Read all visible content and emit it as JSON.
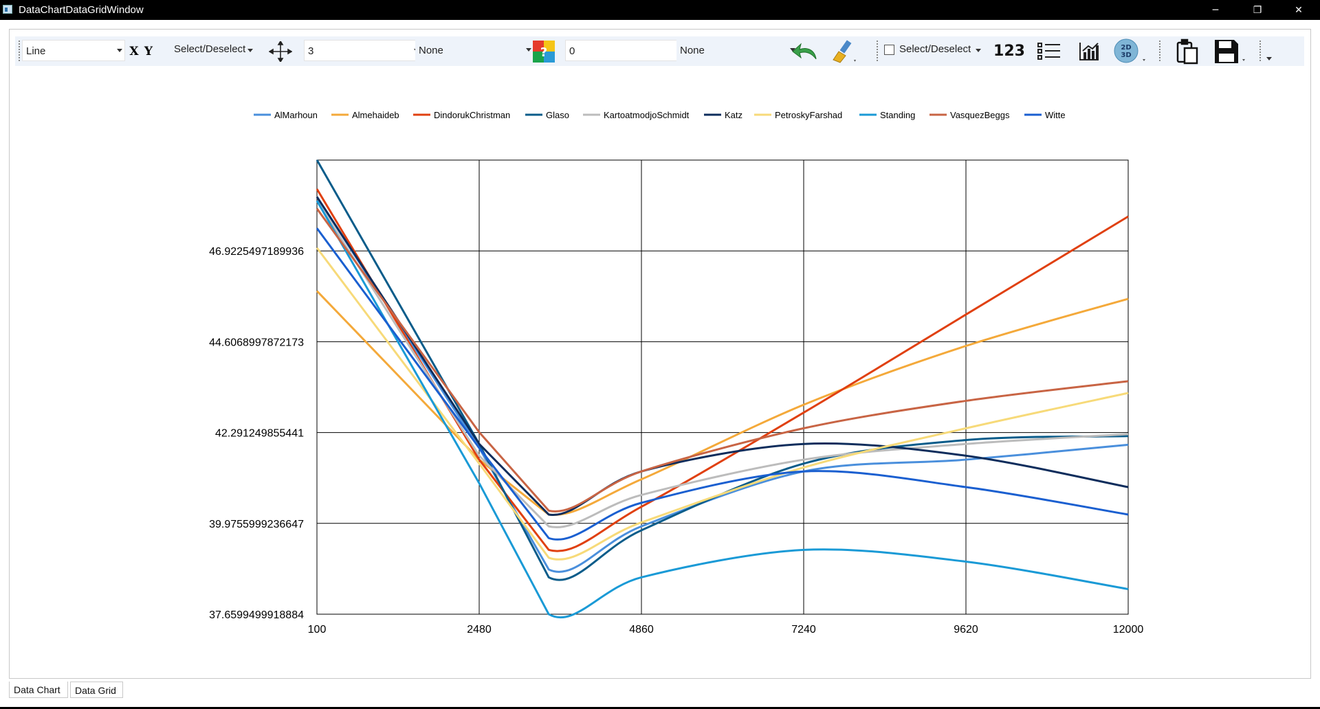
{
  "window": {
    "title": "DataChartDataGridWindow",
    "minimize": "─",
    "restore": "❐",
    "close": "✕"
  },
  "toolbar": {
    "chart_type": "Line",
    "x_label_icon": "X",
    "y_label_icon": "Y",
    "select_deselect_1": "Select/Deselect",
    "line_width": "3",
    "marker": "None",
    "color_icon": "?",
    "thickness": "0",
    "fill": "None",
    "select_deselect_2": "Select/Deselect",
    "numbers_icon": "123"
  },
  "icons": [
    "move-arrows-icon",
    "palette-icon",
    "undo-arrow-icon",
    "paint-brush-icon",
    "numbers-icon",
    "list-icon",
    "chart-icon",
    "2d-3d-icon",
    "clipboard-icon",
    "save-icon"
  ],
  "tabs": [
    {
      "label": "Data Chart",
      "active": true
    },
    {
      "label": "Data Grid",
      "active": false
    }
  ],
  "chart_data": {
    "type": "line",
    "title": "",
    "xlabel": "",
    "ylabel": "",
    "x_ticks": [
      "100",
      "2480",
      "4860",
      "7240",
      "9620",
      "12000"
    ],
    "y_ticks": [
      "37.6599499918884",
      "39.9755999236647",
      "42.291249855441",
      "44.6068997872173",
      "46.9225497189936"
    ],
    "xlim": [
      100,
      12000
    ],
    "ylim": [
      37.6599499918884,
      49.2381996507699
    ],
    "grid": true,
    "legend_position": "top",
    "series": [
      {
        "name": "AlMarhoun",
        "color": "#4a8fdc",
        "x": [
          100,
          2480,
          3500,
          4860,
          7240,
          9620,
          12000
        ],
        "y": [
          48.3,
          41.9,
          38.8,
          39.9,
          41.3,
          41.6,
          41.98
        ]
      },
      {
        "name": "Almehaideb",
        "color": "#f4a93a",
        "x": [
          100,
          2480,
          3500,
          4860,
          7240,
          9620,
          12000
        ],
        "y": [
          45.9,
          41.6,
          40.2,
          41.1,
          43.0,
          44.5,
          45.7
        ]
      },
      {
        "name": "DindorukChristman",
        "color": "#e04010",
        "x": [
          100,
          2480,
          3500,
          4860,
          7240,
          9620,
          12000
        ],
        "y": [
          48.5,
          41.6,
          39.3,
          40.4,
          42.8,
          45.3,
          47.8
        ]
      },
      {
        "name": "Glaso",
        "color": "#0a5c8a",
        "x": [
          100,
          2480,
          3500,
          4860,
          7240,
          9620,
          12000
        ],
        "y": [
          49.24,
          42.0,
          38.6,
          39.8,
          41.5,
          42.1,
          42.2
        ]
      },
      {
        "name": "KartoatmodjoSchmidt",
        "color": "#bcbcbc",
        "x": [
          100,
          2480,
          3500,
          4860,
          7240,
          9620,
          12000
        ],
        "y": [
          48.2,
          41.7,
          39.9,
          40.7,
          41.6,
          42.0,
          42.25
        ]
      },
      {
        "name": "Katz",
        "color": "#0e2d5c",
        "x": [
          100,
          2480,
          3500,
          4860,
          7240,
          9620,
          12000
        ],
        "y": [
          48.3,
          42.0,
          40.2,
          41.3,
          42.0,
          41.7,
          40.9
        ]
      },
      {
        "name": "PetroskyFarshad",
        "color": "#f7da79",
        "x": [
          100,
          2480,
          3500,
          4860,
          7240,
          9620,
          12000
        ],
        "y": [
          47.0,
          41.5,
          39.1,
          40.0,
          41.4,
          42.4,
          43.3
        ]
      },
      {
        "name": "Standing",
        "color": "#1a9ad6",
        "x": [
          100,
          2480,
          3500,
          4860,
          7240,
          9620,
          12000
        ],
        "y": [
          48.2,
          41.0,
          37.66,
          38.6,
          39.3,
          39.0,
          38.3
        ]
      },
      {
        "name": "VasquezBeggs",
        "color": "#c86444",
        "x": [
          100,
          2480,
          3500,
          4860,
          7240,
          9620,
          12000
        ],
        "y": [
          48.0,
          42.3,
          40.3,
          41.3,
          42.4,
          43.1,
          43.6
        ]
      },
      {
        "name": "Witte",
        "color": "#1a5fd0",
        "x": [
          100,
          2480,
          3500,
          4860,
          7240,
          9620,
          12000
        ],
        "y": [
          47.5,
          41.9,
          39.6,
          40.5,
          41.3,
          40.9,
          40.2
        ]
      }
    ]
  }
}
